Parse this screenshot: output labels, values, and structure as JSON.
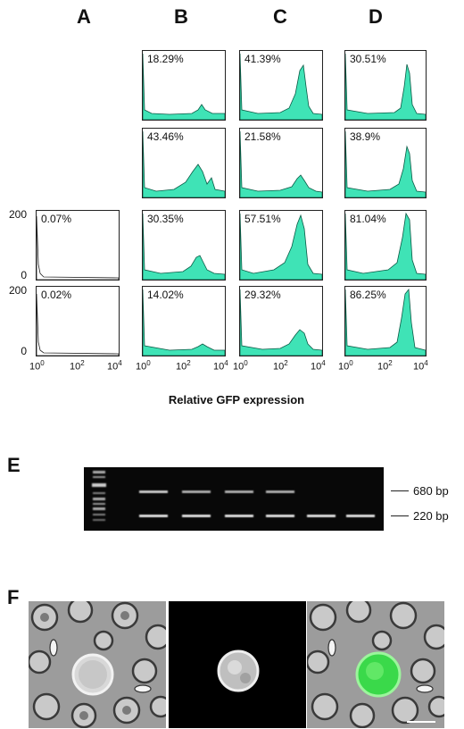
{
  "columns": [
    "A",
    "B",
    "C",
    "D"
  ],
  "flow": {
    "y_ticks": [
      "200",
      "0"
    ],
    "x_ticks": [
      "10",
      "0",
      "10",
      "2",
      "10",
      "4"
    ],
    "x_axis_label": "Relative GFP expression",
    "fill_color": "#3fe3b6",
    "rows": [
      {
        "B": "18.29%",
        "C": "41.39%",
        "D": "30.51%"
      },
      {
        "B": "43.46%",
        "C": "21.58%",
        "D": "38.9%"
      },
      {
        "A": "0.07%",
        "B": "30.35%",
        "C": "57.51%",
        "D": "81.04%"
      },
      {
        "A": "0.02%",
        "B": "14.02%",
        "C": "29.32%",
        "D": "86.25%"
      }
    ]
  },
  "gel": {
    "label": "E",
    "bands": [
      "680 bp",
      "220 bp"
    ]
  },
  "microscopy": {
    "label": "F",
    "panels": [
      "phase-contrast",
      "fluorescence",
      "merge"
    ]
  }
}
